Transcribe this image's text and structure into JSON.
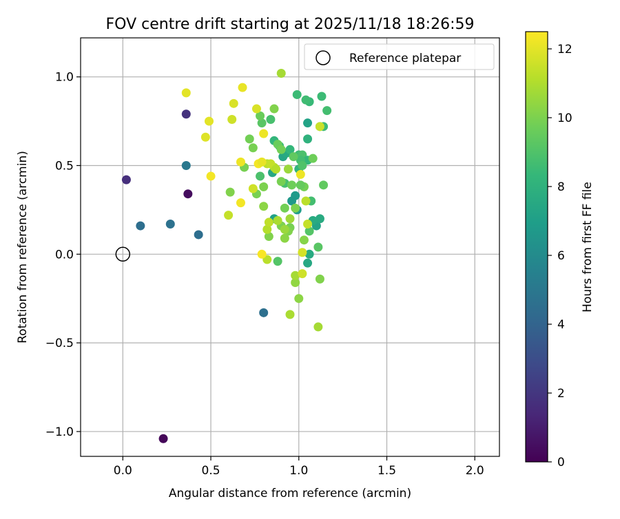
{
  "chart_data": {
    "type": "scatter",
    "title": "FOV centre drift starting at 2025/11/18 18:26:59",
    "xlabel": "Angular distance from reference (arcmin)",
    "ylabel": "Rotation from reference (arcmin)",
    "xlim": [
      -0.24,
      2.14
    ],
    "ylim": [
      -1.14,
      1.22
    ],
    "xticks": [
      0.0,
      0.5,
      1.0,
      1.5,
      2.0
    ],
    "xtick_labels": [
      "0.0",
      "0.5",
      "1.0",
      "1.5",
      "2.0"
    ],
    "yticks": [
      -1.0,
      -0.5,
      0.0,
      0.5,
      1.0
    ],
    "ytick_labels": [
      "−1.0",
      "−0.5",
      "0.0",
      "0.5",
      "1.0"
    ],
    "grid": true,
    "legend": {
      "position": "top-right",
      "label": "Reference platepar"
    },
    "reference_point": {
      "x": 0.0,
      "y": 0.0
    },
    "colorbar": {
      "label": "Hours from first FF file",
      "min": 0,
      "max": 12.5,
      "ticks": [
        0,
        2,
        4,
        6,
        8,
        10,
        12
      ],
      "tick_labels": [
        "0",
        "2",
        "4",
        "6",
        "8",
        "10",
        "12"
      ],
      "colormap": "viridis"
    },
    "colormap_stops": [
      "#440154",
      "#482878",
      "#3e4989",
      "#31688e",
      "#26828e",
      "#1f9e89",
      "#35b779",
      "#6ece58",
      "#b5de2b",
      "#fde725"
    ],
    "points": [
      {
        "x": 0.23,
        "y": -1.04,
        "h": 0.2
      },
      {
        "x": 0.37,
        "y": 0.34,
        "h": 0.4
      },
      {
        "x": 0.02,
        "y": 0.42,
        "h": 1.7
      },
      {
        "x": 0.36,
        "y": 0.79,
        "h": 1.8
      },
      {
        "x": 0.43,
        "y": 0.11,
        "h": 4.5
      },
      {
        "x": 0.27,
        "y": 0.17,
        "h": 4.7
      },
      {
        "x": 0.1,
        "y": 0.16,
        "h": 4.5
      },
      {
        "x": 0.8,
        "y": -0.33,
        "h": 4.6
      },
      {
        "x": 0.36,
        "y": 0.5,
        "h": 5.0
      },
      {
        "x": 0.98,
        "y": 0.33,
        "h": 6.8
      },
      {
        "x": 0.99,
        "y": 0.25,
        "h": 6.9
      },
      {
        "x": 0.96,
        "y": 0.3,
        "h": 6.7
      },
      {
        "x": 0.86,
        "y": 0.2,
        "h": 7.1
      },
      {
        "x": 1.05,
        "y": 0.74,
        "h": 7.2
      },
      {
        "x": 1.1,
        "y": 0.16,
        "h": 7.2
      },
      {
        "x": 1.12,
        "y": 0.2,
        "h": 7.6
      },
      {
        "x": 1.08,
        "y": 0.19,
        "h": 7.6
      },
      {
        "x": 0.91,
        "y": 0.55,
        "h": 7.4
      },
      {
        "x": 0.93,
        "y": 0.57,
        "h": 7.6
      },
      {
        "x": 0.85,
        "y": 0.46,
        "h": 7.5
      },
      {
        "x": 1.05,
        "y": -0.05,
        "h": 7.5
      },
      {
        "x": 1.06,
        "y": 0.0,
        "h": 7.6
      },
      {
        "x": 1.05,
        "y": 0.65,
        "h": 8.0
      },
      {
        "x": 1.0,
        "y": 0.48,
        "h": 8.1
      },
      {
        "x": 0.86,
        "y": 0.64,
        "h": 8.2
      },
      {
        "x": 1.06,
        "y": 0.86,
        "h": 8.4
      },
      {
        "x": 1.04,
        "y": 0.87,
        "h": 8.6
      },
      {
        "x": 0.99,
        "y": 0.9,
        "h": 8.5
      },
      {
        "x": 1.13,
        "y": 0.89,
        "h": 8.5
      },
      {
        "x": 1.16,
        "y": 0.81,
        "h": 8.7
      },
      {
        "x": 1.12,
        "y": 0.72,
        "h": 8.3
      },
      {
        "x": 1.14,
        "y": 0.72,
        "h": 8.5
      },
      {
        "x": 0.92,
        "y": 0.4,
        "h": 8.8
      },
      {
        "x": 0.95,
        "y": 0.59,
        "h": 8.3
      },
      {
        "x": 1.0,
        "y": 0.56,
        "h": 8.6
      },
      {
        "x": 1.02,
        "y": 0.56,
        "h": 8.9
      },
      {
        "x": 1.05,
        "y": 0.53,
        "h": 8.3
      },
      {
        "x": 1.01,
        "y": 0.53,
        "h": 8.7
      },
      {
        "x": 1.02,
        "y": 0.5,
        "h": 9.0
      },
      {
        "x": 0.89,
        "y": 0.61,
        "h": 8.5
      },
      {
        "x": 1.07,
        "y": 0.3,
        "h": 8.7
      },
      {
        "x": 0.84,
        "y": 0.76,
        "h": 8.8
      },
      {
        "x": 0.78,
        "y": 0.44,
        "h": 8.9
      },
      {
        "x": 1.06,
        "y": 0.13,
        "h": 9.1
      },
      {
        "x": 1.11,
        "y": 0.04,
        "h": 9.2
      },
      {
        "x": 0.88,
        "y": -0.04,
        "h": 9.1
      },
      {
        "x": 0.79,
        "y": 0.74,
        "h": 9.2
      },
      {
        "x": 0.78,
        "y": 0.78,
        "h": 9.6
      },
      {
        "x": 0.88,
        "y": 0.62,
        "h": 9.6
      },
      {
        "x": 0.9,
        "y": 0.59,
        "h": 9.8
      },
      {
        "x": 0.97,
        "y": 0.55,
        "h": 9.4
      },
      {
        "x": 1.08,
        "y": 0.54,
        "h": 9.7
      },
      {
        "x": 1.14,
        "y": 0.39,
        "h": 9.4
      },
      {
        "x": 1.03,
        "y": 0.38,
        "h": 9.8
      },
      {
        "x": 1.01,
        "y": 0.39,
        "h": 9.5
      },
      {
        "x": 0.96,
        "y": 0.39,
        "h": 9.7
      },
      {
        "x": 0.9,
        "y": 0.41,
        "h": 9.9
      },
      {
        "x": 0.72,
        "y": 0.65,
        "h": 9.8
      },
      {
        "x": 0.74,
        "y": 0.6,
        "h": 9.9
      },
      {
        "x": 0.69,
        "y": 0.49,
        "h": 9.9
      },
      {
        "x": 0.86,
        "y": 0.82,
        "h": 10.1
      },
      {
        "x": 0.76,
        "y": 0.34,
        "h": 9.9
      },
      {
        "x": 0.61,
        "y": 0.35,
        "h": 10.1
      },
      {
        "x": 0.8,
        "y": 0.38,
        "h": 10.0
      },
      {
        "x": 0.8,
        "y": 0.27,
        "h": 10.3
      },
      {
        "x": 0.9,
        "y": 0.16,
        "h": 10.0
      },
      {
        "x": 0.92,
        "y": 0.26,
        "h": 9.8
      },
      {
        "x": 0.98,
        "y": 0.26,
        "h": 10.0
      },
      {
        "x": 0.95,
        "y": 0.15,
        "h": 9.9
      },
      {
        "x": 0.94,
        "y": 0.13,
        "h": 10.1
      },
      {
        "x": 0.83,
        "y": 0.1,
        "h": 10.1
      },
      {
        "x": 0.92,
        "y": 0.09,
        "h": 10.3
      },
      {
        "x": 1.03,
        "y": 0.08,
        "h": 10.2
      },
      {
        "x": 1.12,
        "y": -0.14,
        "h": 10.1
      },
      {
        "x": 0.98,
        "y": -0.16,
        "h": 10.4
      },
      {
        "x": 1.0,
        "y": -0.25,
        "h": 10.3
      },
      {
        "x": 0.98,
        "y": -0.12,
        "h": 10.8
      },
      {
        "x": 0.95,
        "y": -0.34,
        "h": 10.9
      },
      {
        "x": 1.11,
        "y": -0.41,
        "h": 10.8
      },
      {
        "x": 0.9,
        "y": 1.02,
        "h": 10.8
      },
      {
        "x": 0.94,
        "y": 0.48,
        "h": 10.6
      },
      {
        "x": 0.95,
        "y": 0.2,
        "h": 10.7
      },
      {
        "x": 0.88,
        "y": 0.19,
        "h": 10.9
      },
      {
        "x": 0.92,
        "y": 0.14,
        "h": 10.6
      },
      {
        "x": 0.82,
        "y": 0.14,
        "h": 11.1
      },
      {
        "x": 0.83,
        "y": 0.18,
        "h": 11.3
      },
      {
        "x": 0.86,
        "y": 0.49,
        "h": 11.0
      },
      {
        "x": 0.82,
        "y": 0.51,
        "h": 11.2
      },
      {
        "x": 0.84,
        "y": 0.51,
        "h": 11.4
      },
      {
        "x": 0.87,
        "y": 0.48,
        "h": 11.1
      },
      {
        "x": 1.04,
        "y": 0.3,
        "h": 11.2
      },
      {
        "x": 1.05,
        "y": 0.17,
        "h": 11.4
      },
      {
        "x": 1.12,
        "y": 0.72,
        "h": 11.5
      },
      {
        "x": 0.82,
        "y": -0.03,
        "h": 11.2
      },
      {
        "x": 1.02,
        "y": -0.11,
        "h": 11.6
      },
      {
        "x": 1.02,
        "y": 0.01,
        "h": 11.7
      },
      {
        "x": 0.6,
        "y": 0.22,
        "h": 11.4
      },
      {
        "x": 0.74,
        "y": 0.37,
        "h": 11.6
      },
      {
        "x": 0.62,
        "y": 0.76,
        "h": 11.6
      },
      {
        "x": 0.63,
        "y": 0.85,
        "h": 11.8
      },
      {
        "x": 0.76,
        "y": 0.82,
        "h": 11.8
      },
      {
        "x": 0.49,
        "y": 0.75,
        "h": 12.0
      },
      {
        "x": 0.47,
        "y": 0.66,
        "h": 11.9
      },
      {
        "x": 0.36,
        "y": 0.91,
        "h": 12.0
      },
      {
        "x": 0.68,
        "y": 0.94,
        "h": 12.1
      },
      {
        "x": 0.67,
        "y": 0.52,
        "h": 12.2
      },
      {
        "x": 0.77,
        "y": 0.51,
        "h": 12.3
      },
      {
        "x": 0.79,
        "y": 0.52,
        "h": 12.1
      },
      {
        "x": 0.8,
        "y": 0.68,
        "h": 12.2
      },
      {
        "x": 1.01,
        "y": 0.45,
        "h": 12.2
      },
      {
        "x": 0.5,
        "y": 0.44,
        "h": 12.3
      },
      {
        "x": 0.67,
        "y": 0.29,
        "h": 12.3
      },
      {
        "x": 0.79,
        "y": 0.0,
        "h": 12.4
      }
    ]
  }
}
